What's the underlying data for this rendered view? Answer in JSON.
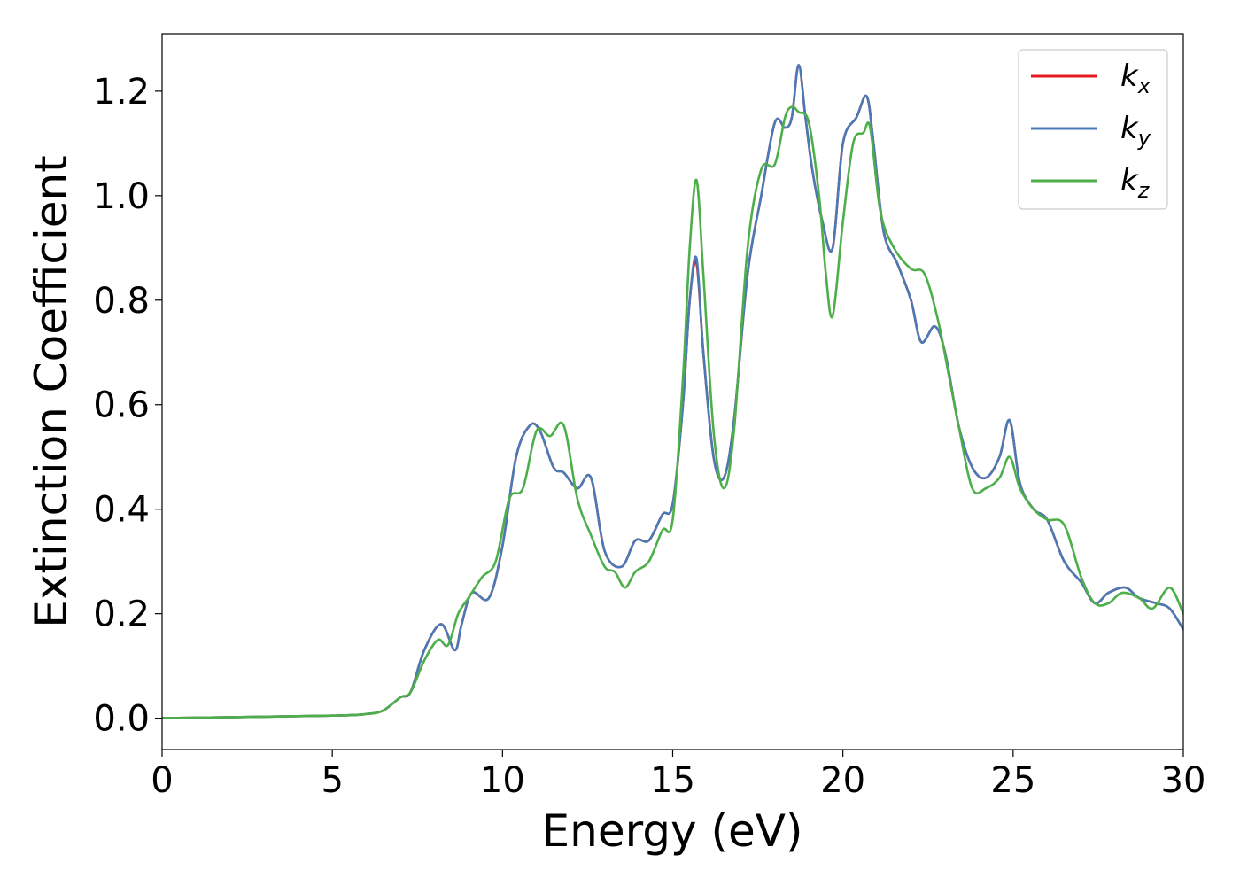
{
  "chart_data": {
    "type": "line",
    "xlabel": "Energy (eV)",
    "ylabel": "Extinction Coefficient",
    "xlim": [
      0,
      30
    ],
    "ylim": [
      -0.06,
      1.31
    ],
    "xticks": [
      0,
      5,
      10,
      15,
      20,
      25,
      30
    ],
    "xtick_labels": [
      "0",
      "5",
      "10",
      "15",
      "20",
      "25",
      "30"
    ],
    "yticks": [
      0.0,
      0.2,
      0.4,
      0.6,
      0.8,
      1.0,
      1.2
    ],
    "ytick_labels": [
      "0.0",
      "0.2",
      "0.4",
      "0.6",
      "0.8",
      "1.0",
      "1.2"
    ],
    "grid": false,
    "legend_position": "top-right",
    "series": [
      {
        "name": "k_x",
        "label_base": "k",
        "label_sub": "x",
        "color": "#e41a1c",
        "x": [
          0,
          5,
          6,
          6.5,
          7,
          7.3,
          7.7,
          8.2,
          8.6,
          8.8,
          9.1,
          9.6,
          10,
          10.4,
          10.8,
          11.1,
          11.5,
          11.8,
          12.2,
          12.6,
          13,
          13.5,
          13.9,
          14.3,
          14.7,
          15,
          15.3,
          15.5,
          15.7,
          15.9,
          16.2,
          16.5,
          16.8,
          17.2,
          17.6,
          18,
          18.3,
          18.5,
          18.7,
          18.9,
          19.1,
          19.4,
          19.7,
          20,
          20.4,
          20.7,
          20.9,
          21.2,
          21.6,
          22,
          22.3,
          22.7,
          23,
          23.4,
          23.8,
          24.2,
          24.6,
          24.9,
          25.2,
          25.6,
          26,
          26.5,
          27,
          27.4,
          27.8,
          28.3,
          28.7,
          29.2,
          29.6,
          30
        ],
        "y": [
          0,
          0.005,
          0.008,
          0.015,
          0.04,
          0.05,
          0.13,
          0.18,
          0.13,
          0.18,
          0.24,
          0.23,
          0.33,
          0.5,
          0.56,
          0.55,
          0.48,
          0.47,
          0.44,
          0.46,
          0.32,
          0.29,
          0.34,
          0.34,
          0.39,
          0.41,
          0.6,
          0.8,
          0.87,
          0.7,
          0.5,
          0.46,
          0.57,
          0.85,
          1.0,
          1.14,
          1.13,
          1.15,
          1.25,
          1.15,
          1.05,
          0.95,
          0.9,
          1.1,
          1.15,
          1.19,
          1.1,
          0.93,
          0.87,
          0.8,
          0.72,
          0.75,
          0.7,
          0.56,
          0.48,
          0.46,
          0.5,
          0.57,
          0.45,
          0.4,
          0.38,
          0.3,
          0.26,
          0.22,
          0.24,
          0.25,
          0.23,
          0.22,
          0.21,
          0.17
        ]
      },
      {
        "name": "k_y",
        "label_base": "k",
        "label_sub": "y",
        "color": "#4a7ab5",
        "x": [
          0,
          5,
          6,
          6.5,
          7,
          7.3,
          7.7,
          8.2,
          8.6,
          8.8,
          9.1,
          9.6,
          10,
          10.4,
          10.8,
          11.1,
          11.5,
          11.8,
          12.2,
          12.6,
          13,
          13.5,
          13.9,
          14.3,
          14.7,
          15,
          15.3,
          15.5,
          15.7,
          15.9,
          16.2,
          16.5,
          16.8,
          17.2,
          17.6,
          18,
          18.3,
          18.5,
          18.7,
          18.9,
          19.1,
          19.4,
          19.7,
          20,
          20.4,
          20.7,
          20.9,
          21.2,
          21.6,
          22,
          22.3,
          22.7,
          23,
          23.4,
          23.8,
          24.2,
          24.6,
          24.9,
          25.2,
          25.6,
          26,
          26.5,
          27,
          27.4,
          27.8,
          28.3,
          28.7,
          29.2,
          29.6,
          30
        ],
        "y": [
          0,
          0.005,
          0.008,
          0.015,
          0.04,
          0.05,
          0.13,
          0.18,
          0.13,
          0.18,
          0.24,
          0.23,
          0.33,
          0.5,
          0.56,
          0.55,
          0.48,
          0.47,
          0.44,
          0.46,
          0.32,
          0.29,
          0.34,
          0.34,
          0.39,
          0.41,
          0.6,
          0.8,
          0.88,
          0.7,
          0.5,
          0.46,
          0.57,
          0.85,
          1.0,
          1.14,
          1.13,
          1.15,
          1.25,
          1.15,
          1.05,
          0.95,
          0.9,
          1.1,
          1.15,
          1.19,
          1.1,
          0.93,
          0.87,
          0.8,
          0.72,
          0.75,
          0.7,
          0.56,
          0.48,
          0.46,
          0.5,
          0.57,
          0.45,
          0.4,
          0.38,
          0.3,
          0.26,
          0.22,
          0.24,
          0.25,
          0.23,
          0.22,
          0.21,
          0.17
        ]
      },
      {
        "name": "k_z",
        "label_base": "k",
        "label_sub": "z",
        "color": "#4daf4a",
        "x": [
          0,
          5,
          6,
          6.5,
          7,
          7.3,
          7.7,
          8.1,
          8.4,
          8.7,
          9,
          9.4,
          9.8,
          10.2,
          10.6,
          11,
          11.4,
          11.8,
          12.2,
          12.6,
          13,
          13.3,
          13.6,
          13.9,
          14.3,
          14.7,
          15,
          15.3,
          15.5,
          15.7,
          15.9,
          16.2,
          16.5,
          16.8,
          17.2,
          17.6,
          18,
          18.3,
          18.5,
          18.7,
          19,
          19.3,
          19.5,
          19.7,
          20,
          20.3,
          20.6,
          20.8,
          21.1,
          21.5,
          22,
          22.4,
          22.8,
          23.1,
          23.4,
          23.8,
          24.2,
          24.6,
          24.9,
          25.2,
          25.6,
          26,
          26.5,
          27,
          27.4,
          27.8,
          28.2,
          28.7,
          29.1,
          29.6,
          30
        ],
        "y": [
          0,
          0.005,
          0.008,
          0.015,
          0.04,
          0.05,
          0.11,
          0.15,
          0.14,
          0.2,
          0.23,
          0.27,
          0.3,
          0.42,
          0.44,
          0.55,
          0.54,
          0.56,
          0.42,
          0.35,
          0.29,
          0.28,
          0.25,
          0.28,
          0.3,
          0.36,
          0.38,
          0.65,
          0.9,
          1.03,
          0.85,
          0.55,
          0.44,
          0.55,
          0.9,
          1.05,
          1.06,
          1.15,
          1.17,
          1.16,
          1.14,
          1.0,
          0.85,
          0.77,
          0.95,
          1.1,
          1.12,
          1.13,
          0.97,
          0.9,
          0.86,
          0.85,
          0.76,
          0.66,
          0.56,
          0.44,
          0.44,
          0.46,
          0.5,
          0.44,
          0.4,
          0.38,
          0.37,
          0.27,
          0.22,
          0.22,
          0.24,
          0.23,
          0.21,
          0.25,
          0.2
        ]
      }
    ]
  }
}
